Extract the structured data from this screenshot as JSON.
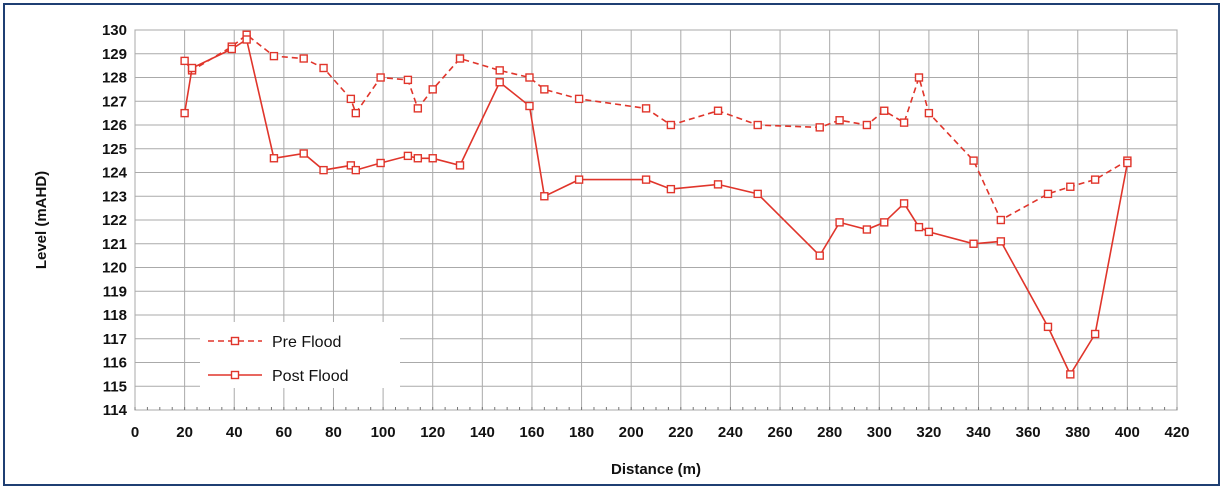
{
  "colors": {
    "series": "#e0352b",
    "grid": "#aaaaaa",
    "frame": "#1f3f73"
  },
  "chart_data": {
    "type": "line",
    "xlabel": "Distance (m)",
    "ylabel": "Level (mAHD)",
    "xlim": [
      0,
      420
    ],
    "ylim": [
      114,
      130
    ],
    "xticks": [
      0,
      20,
      40,
      60,
      80,
      100,
      120,
      140,
      160,
      180,
      200,
      220,
      240,
      260,
      280,
      300,
      320,
      340,
      360,
      380,
      400,
      420
    ],
    "yticks": [
      114,
      115,
      116,
      117,
      118,
      119,
      120,
      121,
      122,
      123,
      124,
      125,
      126,
      127,
      128,
      129,
      130
    ],
    "grid": true,
    "legend_position": "bottom-left",
    "series": [
      {
        "name": "Pre Flood",
        "style": "dashed",
        "marker": "square",
        "x": [
          20,
          23,
          39,
          45,
          56,
          68,
          76,
          87,
          89,
          99,
          110,
          114,
          120,
          131,
          147,
          159,
          165,
          179,
          206,
          216,
          235,
          251,
          276,
          284,
          295,
          302,
          310,
          316,
          320,
          338,
          349,
          368,
          377,
          387,
          400
        ],
        "y": [
          128.7,
          128.3,
          129.3,
          129.8,
          128.9,
          128.8,
          128.4,
          127.1,
          126.5,
          128.0,
          127.9,
          126.7,
          127.5,
          128.8,
          128.3,
          128.0,
          127.5,
          127.1,
          126.7,
          126.0,
          126.6,
          126.0,
          125.9,
          126.2,
          126.0,
          126.6,
          126.1,
          128.0,
          126.5,
          124.5,
          122.0,
          123.1,
          123.4,
          123.7,
          124.5
        ]
      },
      {
        "name": "Post Flood",
        "style": "solid",
        "marker": "square",
        "x": [
          20,
          23,
          39,
          45,
          56,
          68,
          76,
          87,
          89,
          99,
          110,
          114,
          120,
          131,
          147,
          159,
          165,
          179,
          206,
          216,
          235,
          251,
          276,
          284,
          295,
          302,
          310,
          316,
          320,
          338,
          349,
          368,
          377,
          387,
          400
        ],
        "y": [
          126.5,
          128.4,
          129.2,
          129.6,
          124.6,
          124.8,
          124.1,
          124.3,
          124.1,
          124.4,
          124.7,
          124.6,
          124.6,
          124.3,
          127.8,
          126.8,
          123.0,
          123.7,
          123.7,
          123.3,
          123.5,
          123.1,
          120.5,
          121.9,
          121.6,
          121.9,
          122.7,
          121.7,
          121.5,
          121.0,
          121.1,
          117.5,
          115.5,
          117.2,
          124.4
        ]
      }
    ]
  }
}
